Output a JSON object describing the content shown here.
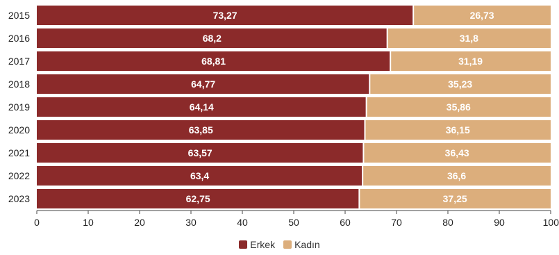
{
  "chart_data": {
    "type": "bar",
    "orientation": "horizontal",
    "stacked": true,
    "categories": [
      "2015",
      "2016",
      "2017",
      "2018",
      "2019",
      "2020",
      "2021",
      "2022",
      "2023"
    ],
    "series": [
      {
        "name": "Erkek",
        "color": "#8b2a2a",
        "values": [
          73.27,
          68.2,
          68.81,
          64.77,
          64.14,
          63.85,
          63.57,
          63.4,
          62.75
        ],
        "labels": [
          "73,27",
          "68,2",
          "68,81",
          "64,77",
          "64,14",
          "63,85",
          "63,57",
          "63,4",
          "62,75"
        ]
      },
      {
        "name": "Kadın",
        "color": "#dcae7c",
        "values": [
          26.73,
          31.8,
          31.19,
          35.23,
          35.86,
          36.15,
          36.43,
          36.6,
          37.25
        ],
        "labels": [
          "26,73",
          "31,8",
          "31,19",
          "35,23",
          "35,86",
          "36,15",
          "36,43",
          "36,6",
          "37,25"
        ]
      }
    ],
    "xlim": [
      0,
      100
    ],
    "xticks": [
      "0",
      "10",
      "20",
      "30",
      "40",
      "50",
      "60",
      "70",
      "80",
      "90",
      "100"
    ],
    "grid": false,
    "legend_position": "bottom"
  }
}
